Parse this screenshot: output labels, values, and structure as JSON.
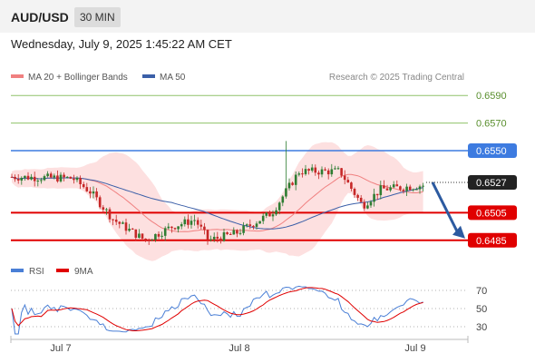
{
  "header": {
    "symbol": "AUD/USD",
    "timeframe": "30 MIN"
  },
  "datetime": "Wednesday, July 9, 2025 1:45:22 AM CET",
  "legend": {
    "ma20_label": "MA 20 + Bollinger Bands",
    "ma50_label": "MA 50",
    "credit": "Research © 2025 Trading Central"
  },
  "colors": {
    "ma20": "#f08080",
    "ma50": "#3b5fa8",
    "bollinger_fill": "#fde0e0",
    "candle_up": "#2e7d32",
    "candle_down": "#c62828",
    "resistance_green": "#8fc26a",
    "pivot_blue": "#3d7be0",
    "support_red": "#e00000",
    "rsi": "#4a7fd6",
    "rsi_ma": "#e00000",
    "arrow": "#2c5aa0"
  },
  "chart_data": [
    {
      "type": "candlestick",
      "title": "",
      "x_ticks": [
        "Jul 7",
        "Jul 8",
        "Jul 9"
      ],
      "ylim": [
        0.6475,
        0.66
      ],
      "current_price": "0.6527",
      "levels": [
        {
          "label": "0.6590",
          "value": 0.659,
          "kind": "resistance"
        },
        {
          "label": "0.6570",
          "value": 0.657,
          "kind": "resistance"
        },
        {
          "label": "0.6550",
          "value": 0.655,
          "kind": "pivot"
        },
        {
          "label": "0.6505",
          "value": 0.6505,
          "kind": "support"
        },
        {
          "label": "0.6485",
          "value": 0.6485,
          "kind": "support"
        }
      ],
      "projection": {
        "from": 0.6527,
        "to": 0.6485
      },
      "series": [
        {
          "name": "MA 20 + Bollinger Bands",
          "kind": "moving-average"
        },
        {
          "name": "MA 50",
          "kind": "moving-average"
        }
      ]
    },
    {
      "type": "line",
      "title": "",
      "ylim": [
        20,
        80
      ],
      "y_ticks": [
        "70",
        "50",
        "30"
      ],
      "series": [
        {
          "name": "RSI"
        },
        {
          "name": "9MA"
        }
      ]
    }
  ]
}
